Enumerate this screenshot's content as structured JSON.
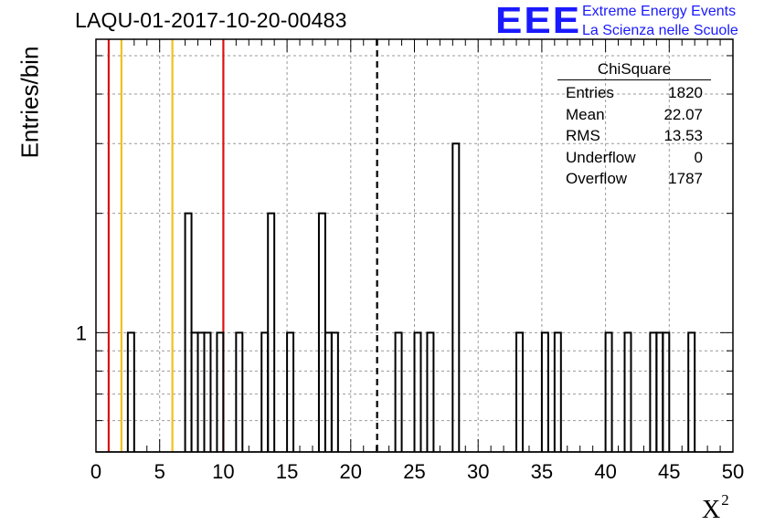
{
  "title": "LAQU-01-2017-10-20-00483",
  "logo": {
    "mark": "EEE",
    "line1": "Extreme Energy Events",
    "line2": "La Scienza nelle Scuole",
    "color": "#1a1aff"
  },
  "stats": {
    "name": "ChiSquare",
    "rows": [
      {
        "label": "Entries",
        "value": "1820"
      },
      {
        "label": "Mean",
        "value": "22.07"
      },
      {
        "label": "RMS",
        "value": "13.53"
      },
      {
        "label": "Underflow",
        "value": "0"
      },
      {
        "label": "Overflow",
        "value": "1787"
      }
    ]
  },
  "chart_data": {
    "type": "bar",
    "histogram": true,
    "title": "LAQU-01-2017-10-20-00483",
    "xlabel": "X",
    "xlabel_superscript": "2",
    "ylabel": "Entries/bin",
    "xlim": [
      0,
      50
    ],
    "ylim": [
      0.5,
      5.5
    ],
    "y_scale": "log",
    "bin_width": 0.5,
    "grid": true,
    "x_ticks": [
      0,
      5,
      10,
      15,
      20,
      25,
      30,
      35,
      40,
      45,
      50
    ],
    "y_tick_labels": [
      "1"
    ],
    "bins": [
      {
        "x": 2.5,
        "value": 1
      },
      {
        "x": 7.0,
        "value": 2
      },
      {
        "x": 7.5,
        "value": 1
      },
      {
        "x": 8.0,
        "value": 1
      },
      {
        "x": 8.5,
        "value": 1
      },
      {
        "x": 9.5,
        "value": 1
      },
      {
        "x": 11.0,
        "value": 1
      },
      {
        "x": 13.0,
        "value": 1
      },
      {
        "x": 13.5,
        "value": 2
      },
      {
        "x": 15.0,
        "value": 1
      },
      {
        "x": 17.5,
        "value": 2
      },
      {
        "x": 18.0,
        "value": 1
      },
      {
        "x": 18.5,
        "value": 1
      },
      {
        "x": 23.5,
        "value": 1
      },
      {
        "x": 25.0,
        "value": 1
      },
      {
        "x": 26.0,
        "value": 1
      },
      {
        "x": 28.0,
        "value": 3
      },
      {
        "x": 33.0,
        "value": 1
      },
      {
        "x": 35.0,
        "value": 1
      },
      {
        "x": 36.0,
        "value": 1
      },
      {
        "x": 40.0,
        "value": 1
      },
      {
        "x": 41.5,
        "value": 1
      },
      {
        "x": 43.5,
        "value": 1
      },
      {
        "x": 44.0,
        "value": 1
      },
      {
        "x": 44.5,
        "value": 1
      },
      {
        "x": 46.5,
        "value": 1
      }
    ],
    "reference_lines": [
      {
        "x": 1.0,
        "color": "#dd1111",
        "style": "solid"
      },
      {
        "x": 2.0,
        "color": "#f2c01e",
        "style": "solid"
      },
      {
        "x": 6.0,
        "color": "#f2c01e",
        "style": "solid"
      },
      {
        "x": 10.0,
        "color": "#dd1111",
        "style": "solid"
      },
      {
        "x": 22.07,
        "color": "#000000",
        "style": "dashed"
      }
    ]
  }
}
